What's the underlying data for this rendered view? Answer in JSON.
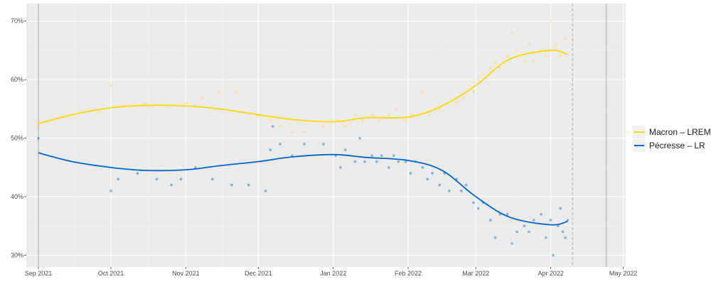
{
  "chart_data": {
    "type": "scatter",
    "title": "",
    "xlabel": "",
    "ylabel": "",
    "x_range": [
      "2021-08-27",
      "2022-05-02"
    ],
    "ylim": [
      28,
      73
    ],
    "y_ticks": [
      30,
      40,
      50,
      60,
      70
    ],
    "y_tick_labels": [
      "30%",
      "40%",
      "50%",
      "60%",
      "70%"
    ],
    "x_ticks": [
      "2021-09-01",
      "2021-10-01",
      "2021-11-01",
      "2021-12-01",
      "2022-01-01",
      "2022-02-01",
      "2022-03-01",
      "2022-04-01",
      "2022-05-01"
    ],
    "x_tick_labels": [
      "Sep 2021",
      "Oct 2021",
      "Nov 2021",
      "Dec 2021",
      "Jan 2022",
      "Feb 2022",
      "Mar 2022",
      "Apr 2022",
      "May 2022"
    ],
    "grid": true,
    "legend_position": "right",
    "reference_lines": [
      {
        "date": "2021-09-01",
        "style": "solid",
        "color": "#b3b3b3"
      },
      {
        "date": "2022-04-10",
        "style": "dashed",
        "color": "#b3b3b3"
      },
      {
        "date": "2022-04-24",
        "style": "solid",
        "color": "#b3b3b3"
      }
    ],
    "series": [
      {
        "name": "Macron – LREM",
        "color": "#FFD700",
        "trend": [
          [
            "2021-09-01",
            52.5
          ],
          [
            "2021-09-15",
            54.0
          ],
          [
            "2021-10-01",
            55.2
          ],
          [
            "2021-10-15",
            55.6
          ],
          [
            "2021-11-01",
            55.5
          ],
          [
            "2021-11-15",
            55.0
          ],
          [
            "2021-12-01",
            54.0
          ],
          [
            "2021-12-15",
            53.2
          ],
          [
            "2022-01-01",
            52.8
          ],
          [
            "2022-01-15",
            53.5
          ],
          [
            "2022-02-01",
            53.6
          ],
          [
            "2022-02-15",
            55.5
          ],
          [
            "2022-03-01",
            59.0
          ],
          [
            "2022-03-15",
            63.5
          ],
          [
            "2022-04-01",
            65.0
          ],
          [
            "2022-04-08",
            64.3
          ]
        ],
        "points": [
          [
            "2021-09-01",
            52
          ],
          [
            "2021-10-01",
            59
          ],
          [
            "2021-10-15",
            56
          ],
          [
            "2021-11-01",
            56
          ],
          [
            "2021-11-08",
            57
          ],
          [
            "2021-11-15",
            58
          ],
          [
            "2021-11-22",
            58
          ],
          [
            "2021-12-01",
            54
          ],
          [
            "2021-12-06",
            53
          ],
          [
            "2021-12-10",
            52
          ],
          [
            "2021-12-15",
            51
          ],
          [
            "2021-12-20",
            51
          ],
          [
            "2021-12-28",
            52
          ],
          [
            "2022-01-03",
            53
          ],
          [
            "2022-01-06",
            52
          ],
          [
            "2022-01-10",
            54
          ],
          [
            "2022-01-13",
            53
          ],
          [
            "2022-01-17",
            54
          ],
          [
            "2022-01-20",
            53
          ],
          [
            "2022-01-24",
            54
          ],
          [
            "2022-01-27",
            55
          ],
          [
            "2022-01-31",
            53
          ],
          [
            "2022-02-03",
            54
          ],
          [
            "2022-02-07",
            58
          ],
          [
            "2022-02-10",
            54
          ],
          [
            "2022-02-14",
            55
          ],
          [
            "2022-02-17",
            56
          ],
          [
            "2022-02-21",
            56
          ],
          [
            "2022-02-24",
            57
          ],
          [
            "2022-02-28",
            58
          ],
          [
            "2022-03-02",
            60
          ],
          [
            "2022-03-04",
            61
          ],
          [
            "2022-03-07",
            62
          ],
          [
            "2022-03-09",
            63
          ],
          [
            "2022-03-11",
            62
          ],
          [
            "2022-03-14",
            64
          ],
          [
            "2022-03-16",
            68
          ],
          [
            "2022-03-18",
            65
          ],
          [
            "2022-03-21",
            63
          ],
          [
            "2022-03-23",
            66
          ],
          [
            "2022-03-25",
            63
          ],
          [
            "2022-03-28",
            65
          ],
          [
            "2022-03-30",
            64
          ],
          [
            "2022-04-01",
            70
          ],
          [
            "2022-04-03",
            66
          ],
          [
            "2022-04-05",
            64
          ],
          [
            "2022-04-07",
            67
          ]
        ]
      },
      {
        "name": "Pécresse – LR",
        "color": "#0066CC",
        "trend": [
          [
            "2021-09-01",
            47.5
          ],
          [
            "2021-09-15",
            46.0
          ],
          [
            "2021-10-01",
            45.0
          ],
          [
            "2021-10-15",
            44.5
          ],
          [
            "2021-11-01",
            44.6
          ],
          [
            "2021-11-15",
            45.3
          ],
          [
            "2021-12-01",
            46.0
          ],
          [
            "2021-12-15",
            46.8
          ],
          [
            "2022-01-01",
            47.2
          ],
          [
            "2022-01-15",
            46.7
          ],
          [
            "2022-02-01",
            46.2
          ],
          [
            "2022-02-15",
            44.5
          ],
          [
            "2022-03-01",
            40.0
          ],
          [
            "2022-03-15",
            36.5
          ],
          [
            "2022-04-01",
            35.2
          ],
          [
            "2022-04-08",
            35.8
          ]
        ],
        "points": [
          [
            "2021-09-01",
            50
          ],
          [
            "2021-10-01",
            41
          ],
          [
            "2021-10-04",
            43
          ],
          [
            "2021-10-12",
            44
          ],
          [
            "2021-10-20",
            43
          ],
          [
            "2021-10-26",
            42
          ],
          [
            "2021-10-30",
            43
          ],
          [
            "2021-11-05",
            45
          ],
          [
            "2021-11-12",
            43
          ],
          [
            "2021-11-20",
            42
          ],
          [
            "2021-11-27",
            42
          ],
          [
            "2021-12-04",
            41
          ],
          [
            "2021-12-06",
            48
          ],
          [
            "2021-12-07",
            52
          ],
          [
            "2021-12-10",
            49
          ],
          [
            "2021-12-15",
            47
          ],
          [
            "2021-12-20",
            49
          ],
          [
            "2021-12-28",
            49
          ],
          [
            "2022-01-02",
            47
          ],
          [
            "2022-01-04",
            45
          ],
          [
            "2022-01-06",
            48
          ],
          [
            "2022-01-10",
            46
          ],
          [
            "2022-01-12",
            50
          ],
          [
            "2022-01-14",
            46
          ],
          [
            "2022-01-17",
            47
          ],
          [
            "2022-01-19",
            46
          ],
          [
            "2022-01-21",
            47
          ],
          [
            "2022-01-24",
            45
          ],
          [
            "2022-01-26",
            47
          ],
          [
            "2022-01-28",
            46
          ],
          [
            "2022-01-31",
            46
          ],
          [
            "2022-02-02",
            44
          ],
          [
            "2022-02-04",
            46
          ],
          [
            "2022-02-07",
            45
          ],
          [
            "2022-02-09",
            43
          ],
          [
            "2022-02-11",
            44
          ],
          [
            "2022-02-14",
            42
          ],
          [
            "2022-02-16",
            44
          ],
          [
            "2022-02-18",
            41
          ],
          [
            "2022-02-21",
            43
          ],
          [
            "2022-02-23",
            41
          ],
          [
            "2022-02-25",
            42
          ],
          [
            "2022-02-28",
            39
          ],
          [
            "2022-03-02",
            38
          ],
          [
            "2022-03-04",
            39
          ],
          [
            "2022-03-07",
            36
          ],
          [
            "2022-03-09",
            33
          ],
          [
            "2022-03-11",
            37
          ],
          [
            "2022-03-14",
            37
          ],
          [
            "2022-03-16",
            32
          ],
          [
            "2022-03-18",
            34
          ],
          [
            "2022-03-21",
            35
          ],
          [
            "2022-03-23",
            34
          ],
          [
            "2022-03-25",
            36
          ],
          [
            "2022-03-28",
            37
          ],
          [
            "2022-03-30",
            33
          ],
          [
            "2022-04-01",
            36
          ],
          [
            "2022-04-02",
            30
          ],
          [
            "2022-04-04",
            35
          ],
          [
            "2022-04-05",
            38
          ],
          [
            "2022-04-06",
            34
          ],
          [
            "2022-04-07",
            33
          ],
          [
            "2022-04-08",
            36
          ]
        ]
      }
    ]
  }
}
